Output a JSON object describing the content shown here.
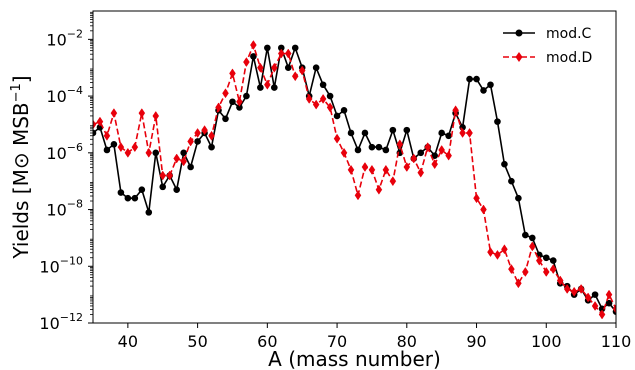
{
  "chart_data": {
    "type": "line",
    "xlabel": "A (mass number)",
    "ylabel": "Yields [M⊙ MSB⁻¹]",
    "xlim": [
      35,
      110
    ],
    "ylim_log10": [
      -12,
      -1
    ],
    "y_scale": "log",
    "grid": false,
    "legend_position": "top-right",
    "x_ticks": [
      40,
      50,
      60,
      70,
      80,
      90,
      100,
      110
    ],
    "y_ticks_log10": [
      -12,
      -10,
      -8,
      -6,
      -4,
      -2
    ],
    "series": [
      {
        "name": "mod.C",
        "color": "#000000",
        "line_style": "solid",
        "marker": "circle",
        "x": [
          35,
          36,
          37,
          38,
          39,
          40,
          41,
          42,
          43,
          44,
          45,
          46,
          47,
          48,
          49,
          50,
          51,
          52,
          53,
          54,
          55,
          56,
          57,
          58,
          59,
          60,
          61,
          62,
          63,
          64,
          65,
          66,
          67,
          68,
          69,
          70,
          71,
          72,
          73,
          74,
          75,
          76,
          77,
          78,
          79,
          80,
          81,
          82,
          83,
          84,
          85,
          86,
          87,
          88,
          89,
          90,
          91,
          92,
          93,
          94,
          95,
          96,
          97,
          98,
          99,
          100,
          101,
          102,
          103,
          104,
          105,
          106,
          107,
          108,
          109,
          110
        ],
        "log10_y": [
          -5.3,
          -5.1,
          -5.9,
          -5.7,
          -7.4,
          -7.6,
          -7.6,
          -7.3,
          -8.1,
          -6.0,
          -7.2,
          -6.8,
          -7.3,
          -6.0,
          -6.5,
          -5.6,
          -5.3,
          -5.8,
          -4.5,
          -4.8,
          -4.2,
          -4.4,
          -4.0,
          -2.6,
          -3.7,
          -2.3,
          -3.7,
          -2.3,
          -3.0,
          -2.3,
          -3.0,
          -4.0,
          -3.0,
          -3.6,
          -4.0,
          -4.7,
          -4.5,
          -5.3,
          -5.9,
          -5.3,
          -5.8,
          -5.8,
          -5.9,
          -5.2,
          -6.0,
          -5.2,
          -6.2,
          -6.0,
          -5.8,
          -6.1,
          -5.3,
          -5.4,
          -4.6,
          -5.1,
          -3.4,
          -3.4,
          -3.8,
          -3.6,
          -4.9,
          -6.4,
          -7.0,
          -7.6,
          -8.9,
          -9.0,
          -9.6,
          -9.7,
          -9.8,
          -10.6,
          -10.7,
          -11.0,
          -10.8,
          -11.2,
          -11.0,
          -11.5,
          -11.3,
          -11.6
        ]
      },
      {
        "name": "mod.D",
        "color": "#e8000b",
        "line_style": "dashed",
        "marker": "diamond",
        "x": [
          35,
          36,
          37,
          38,
          39,
          40,
          41,
          42,
          43,
          44,
          45,
          46,
          47,
          48,
          49,
          50,
          51,
          52,
          53,
          54,
          55,
          56,
          57,
          58,
          59,
          60,
          61,
          62,
          63,
          64,
          65,
          66,
          67,
          68,
          69,
          70,
          71,
          72,
          73,
          74,
          75,
          76,
          77,
          78,
          79,
          80,
          81,
          82,
          83,
          84,
          85,
          86,
          87,
          88,
          89,
          90,
          91,
          92,
          93,
          94,
          95,
          96,
          97,
          98,
          99,
          100,
          101,
          102,
          103,
          104,
          105,
          106,
          107,
          108,
          109,
          110
        ],
        "log10_y": [
          -5.0,
          -4.9,
          -5.4,
          -4.6,
          -5.8,
          -6.0,
          -5.8,
          -4.6,
          -6.0,
          -4.7,
          -6.8,
          -6.8,
          -6.2,
          -6.3,
          -5.6,
          -5.3,
          -5.2,
          -5.4,
          -4.4,
          -3.9,
          -3.2,
          -4.2,
          -2.8,
          -2.2,
          -3.0,
          -3.6,
          -3.0,
          -2.5,
          -2.5,
          -3.3,
          -3.1,
          -4.1,
          -4.3,
          -4.1,
          -4.4,
          -5.5,
          -6.0,
          -6.6,
          -7.5,
          -6.5,
          -6.6,
          -7.3,
          -6.6,
          -7.0,
          -5.7,
          -6.5,
          -6.2,
          -6.7,
          -5.8,
          -6.4,
          -5.9,
          -6.1,
          -4.5,
          -5.3,
          -5.3,
          -7.6,
          -8.0,
          -9.5,
          -9.6,
          -9.4,
          -10.1,
          -10.6,
          -10.2,
          -9.3,
          -9.8,
          -10.2,
          -10.1,
          -10.5,
          -10.8,
          -10.9,
          -10.8,
          -11.1,
          -11.4,
          -11.7,
          -11.0,
          -11.5
        ]
      }
    ]
  }
}
